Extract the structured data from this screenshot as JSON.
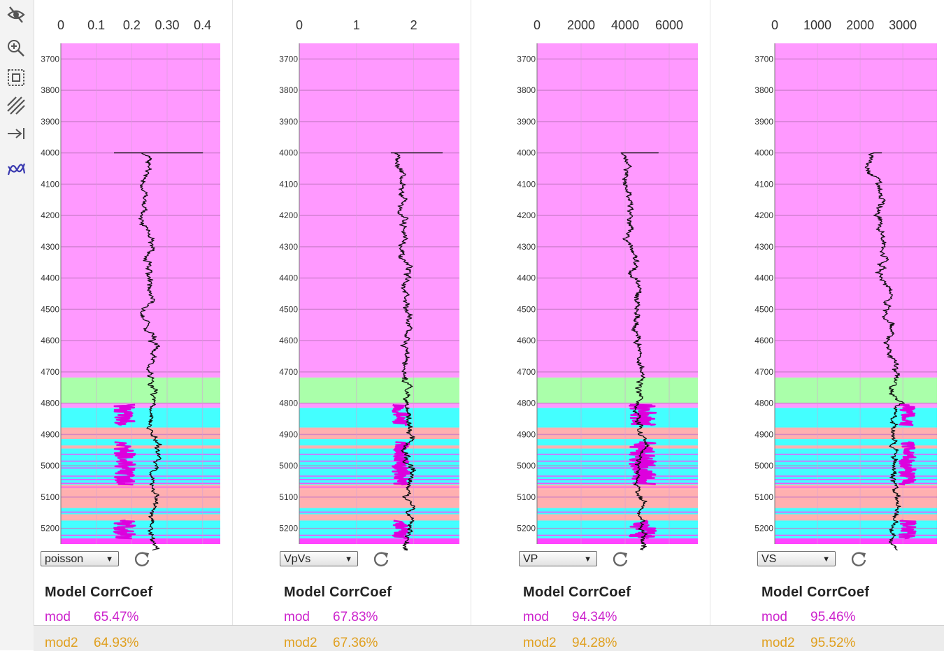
{
  "toolbar": {
    "tools": [
      {
        "icon": "eye-slash-icon"
      },
      {
        "icon": "zoom-in-icon"
      },
      {
        "icon": "select-box-icon"
      },
      {
        "icon": "hatch-icon"
      },
      {
        "icon": "arrow-to-right-icon"
      },
      {
        "icon": "curve-icon",
        "color": "#3a3ab0"
      }
    ]
  },
  "colors": {
    "background_pink": "#ff99ff",
    "green": "#aaffaa",
    "cyan": "#44ffff",
    "salmon": "#ffb0b0",
    "magenta_line": "#dd00dd",
    "pink_thin": "#ff44ff",
    "model_text": "#cc22cc",
    "model2_text": "#e0a020"
  },
  "chart_data": [
    {
      "type": "line",
      "depth_range": [
        3650,
        5250
      ],
      "depth_ticks": [
        3700,
        3800,
        3900,
        4000,
        4100,
        4200,
        4300,
        4400,
        4500,
        4600,
        4700,
        4800,
        4900,
        5000,
        5100,
        5200
      ],
      "x_ticks": [
        "0",
        "0.1",
        "0.2",
        "0.30",
        "0.4"
      ],
      "x_tick_values": [
        0,
        0.1,
        0.2,
        0.3,
        0.4
      ],
      "xlim": [
        0,
        0.45
      ],
      "log": {
        "d0": 4000,
        "d1": 4720,
        "x0": 0.24,
        "x1": 0.26,
        "spike": [
          0.15,
          0.4
        ]
      },
      "model": {
        "base": 0.21,
        "dev": 0.06,
        "dir": -1
      },
      "dropdown": "poisson",
      "stats": {
        "title": "Model CorrCoef",
        "mod_label": "mod",
        "mod_value": "65.47%",
        "mod2_label": "mod2",
        "mod2_value": "64.93%"
      }
    },
    {
      "type": "line",
      "depth_range": [
        3650,
        5250
      ],
      "depth_ticks": [
        3700,
        3800,
        3900,
        4000,
        4100,
        4200,
        4300,
        4400,
        4500,
        4600,
        4700,
        4800,
        4900,
        5000,
        5100,
        5200
      ],
      "x_ticks": [
        "0",
        "1",
        "2"
      ],
      "x_tick_values": [
        0,
        1,
        2
      ],
      "xlim": [
        0,
        2.8
      ],
      "log": {
        "d0": 4000,
        "d1": 4720,
        "x0": 1.74,
        "x1": 1.9,
        "spike": [
          1.6,
          2.5
        ]
      },
      "model": {
        "base": 1.78,
        "dev": 0.15,
        "dir": 0
      },
      "dropdown": "VpVs",
      "stats": {
        "title": "Model CorrCoef",
        "mod_label": "mod",
        "mod_value": "67.83%",
        "mod2_label": "mod2",
        "mod2_value": "67.36%"
      }
    },
    {
      "type": "line",
      "depth_range": [
        3650,
        5250
      ],
      "depth_ticks": [
        3700,
        3800,
        3900,
        4000,
        4100,
        4200,
        4300,
        4400,
        4500,
        4600,
        4700,
        4800,
        4900,
        5000,
        5100,
        5200
      ],
      "x_ticks": [
        "0",
        "2000",
        "4000",
        "6000"
      ],
      "x_tick_values": [
        0,
        2000,
        4000,
        6000
      ],
      "xlim": [
        0,
        7300
      ],
      "log": {
        "d0": 4000,
        "d1": 4720,
        "x0": 4000,
        "x1": 4700,
        "spike": [
          3800,
          5500
        ]
      },
      "model": {
        "base": 4800,
        "dev": 600,
        "dir": 0
      },
      "dropdown": "VP",
      "stats": {
        "title": "Model CorrCoef",
        "mod_label": "mod",
        "mod_value": "94.34%",
        "mod2_label": "mod2",
        "mod2_value": "94.28%"
      }
    },
    {
      "type": "line",
      "depth_range": [
        3650,
        5250
      ],
      "depth_ticks": [
        3700,
        3800,
        3900,
        4000,
        4100,
        4200,
        4300,
        4400,
        4500,
        4600,
        4700,
        4800,
        4900,
        5000,
        5100,
        5200
      ],
      "x_ticks": [
        "0",
        "1000",
        "2000",
        "3000"
      ],
      "x_tick_values": [
        0,
        1000,
        2000,
        3000
      ],
      "xlim": [
        0,
        3800
      ],
      "log": {
        "d0": 4000,
        "d1": 4720,
        "x0": 2350,
        "x1": 2800,
        "spike": [
          2300,
          2500
        ]
      },
      "model": {
        "base": 2900,
        "dev": 400,
        "dir": 1
      },
      "dropdown": "VS",
      "stats": {
        "title": "Model CorrCoef",
        "mod_label": "mod",
        "mod_value": "95.46%",
        "mod2_label": "mod2",
        "mod2_value": "95.52%"
      }
    }
  ],
  "zones": [
    {
      "top": 3650,
      "bottom": 4718,
      "color": "#ff99ff"
    },
    {
      "top": 4718,
      "bottom": 4800,
      "color": "#aaffaa"
    },
    {
      "top": 4800,
      "bottom": 4815,
      "color": "#ff99ff"
    },
    {
      "top": 4815,
      "bottom": 4878,
      "color": "#44ffff"
    },
    {
      "top": 4878,
      "bottom": 4915,
      "color": "#ffb0b0"
    },
    {
      "top": 4915,
      "bottom": 4935,
      "color": "#44ffff"
    },
    {
      "top": 4935,
      "bottom": 4945,
      "color": "#ffb0b0"
    },
    {
      "top": 4945,
      "bottom": 5060,
      "color": "#44ffff"
    },
    {
      "top": 5060,
      "bottom": 5075,
      "color": "#ffb0b0"
    },
    {
      "top": 5075,
      "bottom": 5135,
      "color": "#ffb0b0"
    },
    {
      "top": 5135,
      "bottom": 5155,
      "color": "#44ffff"
    },
    {
      "top": 5155,
      "bottom": 5175,
      "color": "#ffb0b0"
    },
    {
      "top": 5175,
      "bottom": 5232,
      "color": "#44ffff"
    },
    {
      "top": 5232,
      "bottom": 5250,
      "color": "#ff44ff"
    }
  ],
  "zone_lines": [
    4963,
    4985,
    5007,
    5033,
    5044,
    5056,
    5068,
    5148,
    5222
  ],
  "model_intervals": [
    [
      4805,
      4870
    ],
    [
      4925,
      5060
    ],
    [
      5175,
      5232
    ]
  ]
}
